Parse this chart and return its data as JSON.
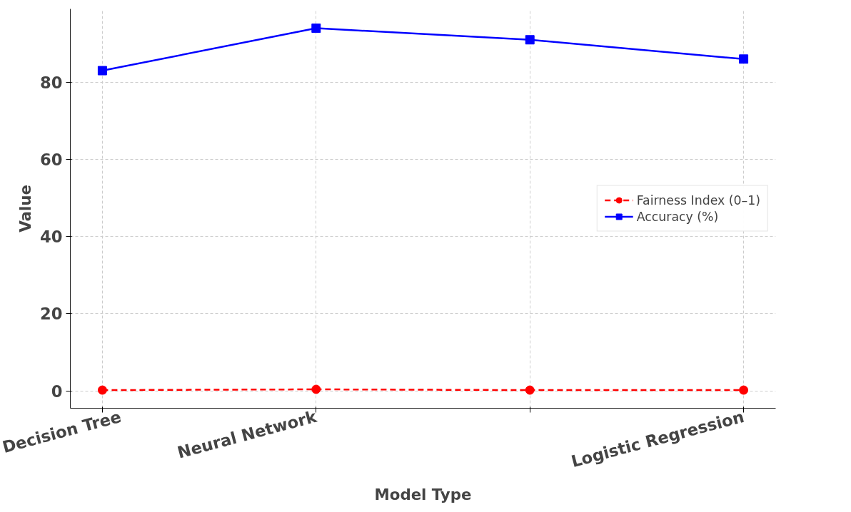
{
  "chart_data": {
    "type": "line",
    "xlabel": "Model Type",
    "ylabel": "Value",
    "categories": [
      "Decision Tree",
      "Neural Network",
      null,
      "Logistic Regression"
    ],
    "series": [
      {
        "name": "Fairness Index (0–1)",
        "color": "#ff0000",
        "values": [
          0.2,
          0.4,
          0.2,
          0.2
        ],
        "marker": "circle",
        "line_style": "dashed"
      },
      {
        "name": "Accuracy (%)",
        "color": "#0000ff",
        "values": [
          83,
          94,
          91,
          86
        ],
        "marker": "square",
        "line_style": "solid"
      }
    ],
    "ylim": [
      -4.5,
      99
    ],
    "yticks": [
      0,
      20,
      40,
      60,
      80
    ],
    "grid": true,
    "legend": "right"
  }
}
